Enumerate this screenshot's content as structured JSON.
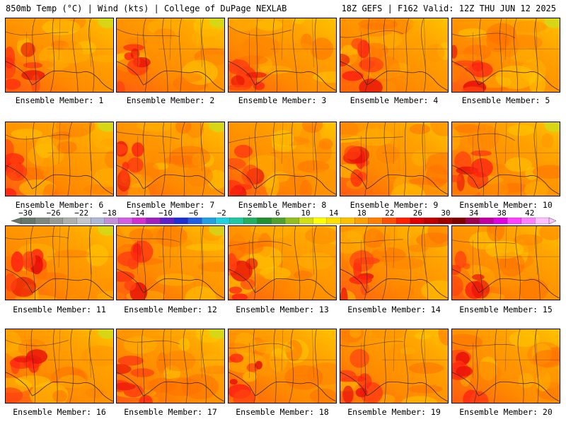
{
  "header": {
    "left": "850mb Temp (°C) | Wind (kts) | College of DuPage NEXLAB",
    "right": "18Z GEFS | F162 Valid: 12Z THU JUN 12 2025"
  },
  "member_label_prefix": "Ensemble Member: ",
  "members": [
    {
      "label": "Ensemble Member: 1",
      "num": 1
    },
    {
      "label": "Ensemble Member: 2",
      "num": 2
    },
    {
      "label": "Ensemble Member: 3",
      "num": 3
    },
    {
      "label": "Ensemble Member: 4",
      "num": 4
    },
    {
      "label": "Ensemble Member: 5",
      "num": 5
    },
    {
      "label": "Ensemble Member: 6",
      "num": 6
    },
    {
      "label": "Ensemble Member: 7",
      "num": 7
    },
    {
      "label": "Ensemble Member: 8",
      "num": 8
    },
    {
      "label": "Ensemble Member: 9",
      "num": 9
    },
    {
      "label": "Ensemble Member: 10",
      "num": 10
    },
    {
      "label": "Ensemble Member: 11",
      "num": 11
    },
    {
      "label": "Ensemble Member: 12",
      "num": 12
    },
    {
      "label": "Ensemble Member: 13",
      "num": 13
    },
    {
      "label": "Ensemble Member: 14",
      "num": 14
    },
    {
      "label": "Ensemble Member: 15",
      "num": 15
    },
    {
      "label": "Ensemble Member: 16",
      "num": 16
    },
    {
      "label": "Ensemble Member: 17",
      "num": 17
    },
    {
      "label": "Ensemble Member: 18",
      "num": 18
    },
    {
      "label": "Ensemble Member: 19",
      "num": 19
    },
    {
      "label": "Ensemble Member: 20",
      "num": 20
    }
  ],
  "colorbar": {
    "tick_labels": [
      "−30",
      "−26",
      "−22",
      "−18",
      "−14",
      "−10",
      "−6",
      "−2",
      "2",
      "6",
      "10",
      "14",
      "18",
      "22",
      "26",
      "30",
      "34",
      "38",
      "42"
    ],
    "colors": [
      "#66766a",
      "#7e877e",
      "#969a96",
      "#aeb0ae",
      "#c4c6cc",
      "#b0b8d8",
      "#c090d8",
      "#d060e0",
      "#d030d0",
      "#a020c0",
      "#6020c8",
      "#2030d0",
      "#2060e0",
      "#20a0e0",
      "#20d0e0",
      "#20c8a0",
      "#20b060",
      "#209030",
      "#50a030",
      "#90c020",
      "#d0e010",
      "#ffff00",
      "#ffe000",
      "#ffc000",
      "#ffa000",
      "#ff8000",
      "#ff5000",
      "#ff2000",
      "#e00000",
      "#c00000",
      "#a00000",
      "#800000",
      "#a00050",
      "#c000a0",
      "#e000e0",
      "#ff40ff",
      "#ff80ff",
      "#ffc0ff"
    ]
  }
}
